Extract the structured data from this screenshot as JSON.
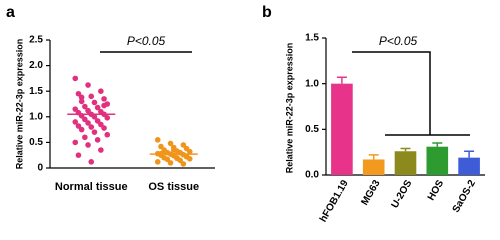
{
  "chart_data": [
    {
      "type": "dot",
      "panel": "a",
      "ylabel": "Relative miR-22-3p expression",
      "annotation": "P<0.05",
      "categories": [
        "Normal tissue",
        "OS tissue"
      ],
      "groups": [
        {
          "color": "#e0307f",
          "mean": 1.05,
          "values": [
            1.75,
            1.62,
            1.5,
            1.45,
            1.4,
            1.35,
            1.3,
            1.28,
            1.25,
            1.2,
            1.18,
            1.15,
            1.12,
            1.1,
            1.08,
            1.05,
            1.05,
            1.02,
            1.0,
            0.98,
            0.95,
            0.92,
            0.9,
            0.88,
            0.85,
            0.82,
            0.8,
            0.78,
            0.75,
            0.7,
            0.65,
            0.6,
            0.55,
            0.5,
            0.45,
            0.35,
            0.25,
            0.12,
            1.22,
            1.38
          ]
        },
        {
          "color": "#f0951c",
          "mean": 0.27,
          "values": [
            0.55,
            0.48,
            0.45,
            0.42,
            0.4,
            0.38,
            0.35,
            0.33,
            0.32,
            0.3,
            0.3,
            0.28,
            0.27,
            0.26,
            0.25,
            0.24,
            0.22,
            0.2,
            0.2,
            0.18,
            0.17,
            0.15,
            0.12,
            0.1,
            0.08,
            0.28,
            0.35,
            0.23,
            0.31,
            0.19
          ]
        }
      ],
      "ylim": [
        0,
        2.5
      ],
      "yticks": [
        0,
        0.5,
        {
          "value": 1,
          "label": "1.0"
        },
        1.5,
        {
          "value": 2,
          "label": "2.0"
        },
        2.5
      ]
    },
    {
      "type": "bar",
      "panel": "b",
      "ylabel": "Relative miR-22-3p expression",
      "annotation": "P<0.05",
      "categories": [
        "hFOB1.19",
        "MG63",
        "U-2OS",
        "HOS",
        "SaOS-2"
      ],
      "values": [
        1.0,
        0.17,
        0.26,
        0.31,
        0.19
      ],
      "errors": [
        0.07,
        0.05,
        0.03,
        0.04,
        0.07
      ],
      "colors": [
        "#e8338a",
        "#f29a1f",
        "#8c8a1c",
        "#2e9b30",
        "#3e5bd8"
      ],
      "ylim": [
        0,
        1.5
      ],
      "yticks": [
        {
          "value": 0,
          "label": "0.0"
        },
        0.5,
        {
          "value": 1,
          "label": "1.0"
        },
        1.5
      ]
    }
  ]
}
